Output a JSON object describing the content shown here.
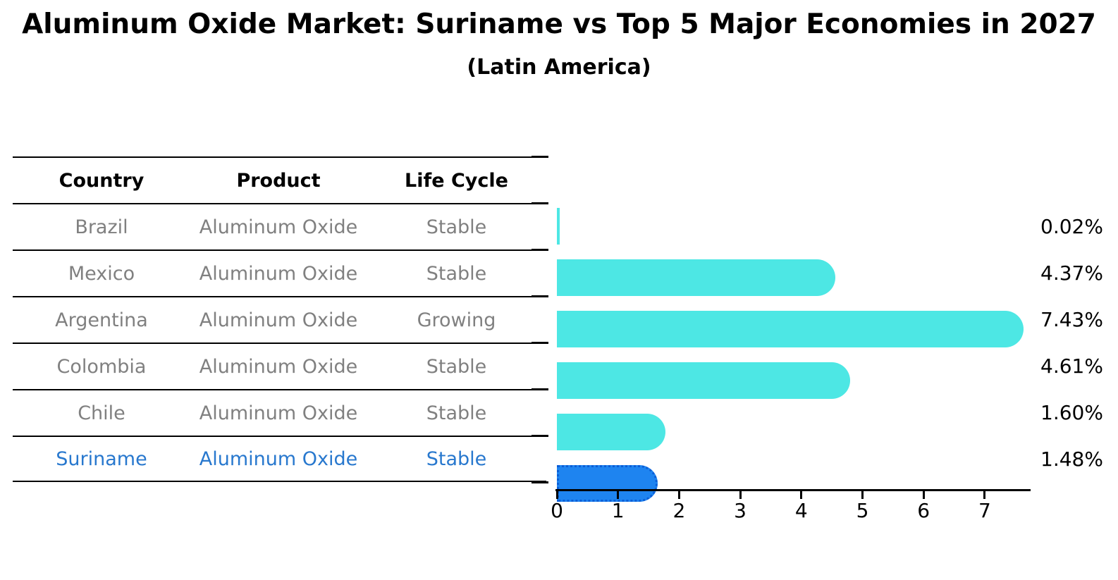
{
  "title": "Aluminum Oxide Market: Suriname vs Top 5 Major Economies in 2027",
  "subtitle": "(Latin America)",
  "table": {
    "headers": [
      "Country",
      "Product",
      "Life Cycle"
    ],
    "rows": [
      {
        "country": "Brazil",
        "product": "Aluminum Oxide",
        "life_cycle": "Stable",
        "highlight": false
      },
      {
        "country": "Mexico",
        "product": "Aluminum Oxide",
        "life_cycle": "Stable",
        "highlight": false
      },
      {
        "country": "Argentina",
        "product": "Aluminum Oxide",
        "life_cycle": "Growing",
        "highlight": false
      },
      {
        "country": "Colombia",
        "product": "Aluminum Oxide",
        "life_cycle": "Stable",
        "highlight": false
      },
      {
        "country": "Chile",
        "product": "Aluminum Oxide",
        "life_cycle": "Stable",
        "highlight": false
      },
      {
        "country": "Suriname",
        "product": "Aluminum Oxide",
        "life_cycle": "Stable",
        "highlight": true
      }
    ]
  },
  "chart_data": {
    "type": "bar",
    "orientation": "horizontal",
    "title": "Aluminum Oxide Market: Suriname vs Top 5 Major Economies in 2027",
    "subtitle": "(Latin America)",
    "categories": [
      "Brazil",
      "Mexico",
      "Argentina",
      "Colombia",
      "Chile",
      "Suriname"
    ],
    "values": [
      0.02,
      4.37,
      7.43,
      4.61,
      1.6,
      1.48
    ],
    "value_labels": [
      "0.02%",
      "4.37%",
      "7.43%",
      "4.61%",
      "1.60%",
      "1.48%"
    ],
    "x_ticks": [
      "0",
      "1",
      "2",
      "3",
      "4",
      "5",
      "6",
      "7"
    ],
    "xlim": [
      0,
      7.7
    ],
    "grid": false,
    "legend": false,
    "highlight_index": 5,
    "colors": {
      "bar": "#4de7e4",
      "highlight_bar": "#1e84f0",
      "highlight_border": "#0b5ed7",
      "axis": "#000000",
      "value_label_text": "#000000",
      "table_row_text": "#808080",
      "table_highlight_text": "#2878ce",
      "header_text": "#000000"
    }
  }
}
